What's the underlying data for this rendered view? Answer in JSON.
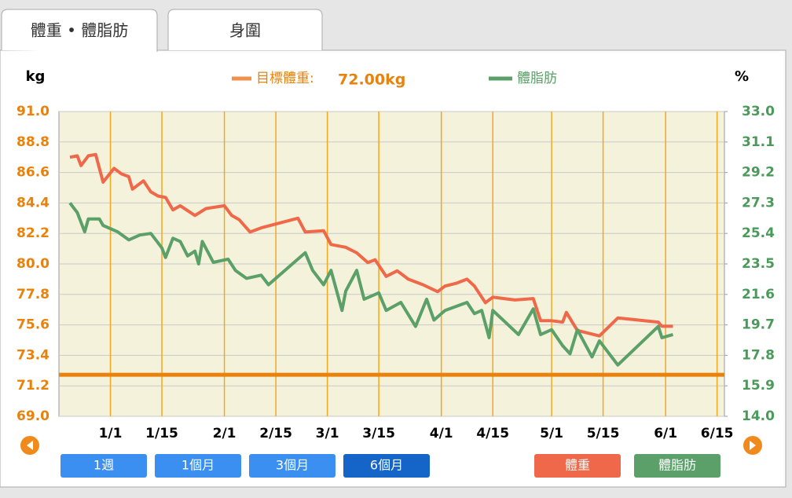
{
  "tabs": [
    "體重 • 體脂肪",
    "身圍"
  ],
  "chart_data": {
    "type": "line",
    "ylabel": "kg",
    "y2label": "%",
    "target": {
      "label": "目標體重:",
      "value": 72,
      "value_label": "72.00kg",
      "color": "#e8820c"
    },
    "xlim": [
      "12/18",
      "6/17"
    ],
    "xticks": [
      "1/1",
      "1/15",
      "2/1",
      "2/15",
      "3/1",
      "3/15",
      "4/1",
      "4/15",
      "5/1",
      "5/15",
      "6/1",
      "6/15"
    ],
    "ylim": [
      69,
      91
    ],
    "yticks": [
      {
        "value": 69,
        "label": "69.0"
      },
      71.2,
      73.4,
      75.6,
      77.8,
      {
        "value": 80,
        "label": "80.0"
      },
      82.2,
      84.4,
      86.6,
      88.8,
      {
        "value": 91,
        "label": "91.0"
      }
    ],
    "y2lim": [
      14,
      33
    ],
    "y2ticks": [
      {
        "value": 14,
        "label": "14.0"
      },
      15.9,
      17.8,
      19.7,
      21.6,
      23.5,
      25.4,
      27.3,
      29.2,
      31.1,
      {
        "value": 33,
        "label": "33.0"
      }
    ],
    "grid": true,
    "series": [
      {
        "name": "體重",
        "color": "#f0684a",
        "x": [
          "12/21",
          "12/23",
          "12/24",
          "12/26",
          "12/28",
          "12/29",
          "12/30",
          "1/2",
          "1/4",
          "1/6",
          "1/7",
          "1/10",
          "1/12",
          "1/14",
          "1/16",
          "1/18",
          "1/20",
          "1/24",
          "1/27",
          "2/1",
          "2/3",
          "2/5",
          "2/8",
          "2/11",
          "2/21",
          "2/23",
          "2/28",
          "3/2",
          "3/6",
          "3/9",
          "3/12",
          "3/14",
          "3/17",
          "3/20",
          "3/23",
          "3/27",
          "3/31",
          "4/2",
          "4/5",
          "4/8",
          "4/10",
          "4/13",
          "4/15",
          "4/21",
          "4/26",
          "4/28",
          "5/1",
          "5/4",
          "5/5",
          "5/8",
          "5/14",
          "5/19",
          "5/30",
          "5/31",
          "6/3"
        ],
        "values": [
          87.7,
          87.8,
          87.1,
          87.8,
          87.9,
          86.9,
          85.9,
          86.9,
          86.5,
          86.3,
          85.4,
          86.0,
          85.2,
          84.9,
          84.8,
          83.9,
          84.2,
          83.5,
          84.0,
          84.2,
          83.5,
          83.2,
          82.3,
          82.6,
          83.3,
          82.3,
          82.4,
          81.4,
          81.2,
          80.8,
          80.1,
          80.3,
          79.1,
          79.5,
          78.9,
          78.5,
          78.0,
          78.4,
          78.6,
          78.9,
          78.4,
          77.2,
          77.6,
          77.4,
          77.5,
          75.9,
          75.9,
          75.8,
          76.5,
          75.2,
          74.8,
          76.1,
          75.8,
          75.5,
          75.5
        ]
      },
      {
        "name": "體脂肪",
        "color": "#5aa068",
        "axis": "y2",
        "x": [
          "12/21",
          "12/23",
          "12/25",
          "12/26",
          "12/29",
          "12/30",
          "1/3",
          "1/6",
          "1/9",
          "1/12",
          "1/15",
          "1/16",
          "1/18",
          "1/20",
          "1/22",
          "1/24",
          "1/25",
          "1/26",
          "1/29",
          "2/2",
          "2/4",
          "2/7",
          "2/11",
          "2/13",
          "2/23",
          "2/25",
          "2/28",
          "3/2",
          "3/5",
          "3/6",
          "3/9",
          "3/11",
          "3/15",
          "3/17",
          "3/21",
          "3/25",
          "3/28",
          "3/30",
          "4/2",
          "4/8",
          "4/10",
          "4/12",
          "4/14",
          "4/15",
          "4/22",
          "4/26",
          "4/28",
          "5/1",
          "5/4",
          "5/6",
          "5/8",
          "5/12",
          "5/14",
          "5/19",
          "5/30",
          "5/31",
          "6/3"
        ],
        "values": [
          27.3,
          26.7,
          25.5,
          26.3,
          26.3,
          25.9,
          25.5,
          25.0,
          25.3,
          25.4,
          24.5,
          23.9,
          25.1,
          24.9,
          24.0,
          24.3,
          23.5,
          24.9,
          23.6,
          23.8,
          23.1,
          22.6,
          22.8,
          22.2,
          24.2,
          23.1,
          22.2,
          23.1,
          20.6,
          21.8,
          23.1,
          21.3,
          21.7,
          20.6,
          21.1,
          19.6,
          21.3,
          20.0,
          20.6,
          21.1,
          20.4,
          20.6,
          18.9,
          20.6,
          19.1,
          20.7,
          19.1,
          19.4,
          18.4,
          17.9,
          19.4,
          17.7,
          18.7,
          17.2,
          19.6,
          18.9,
          19.1
        ]
      }
    ]
  },
  "range_buttons": {
    "labels": [
      "1週",
      "1個月",
      "3個月",
      "6個月"
    ],
    "active": 3
  }
}
